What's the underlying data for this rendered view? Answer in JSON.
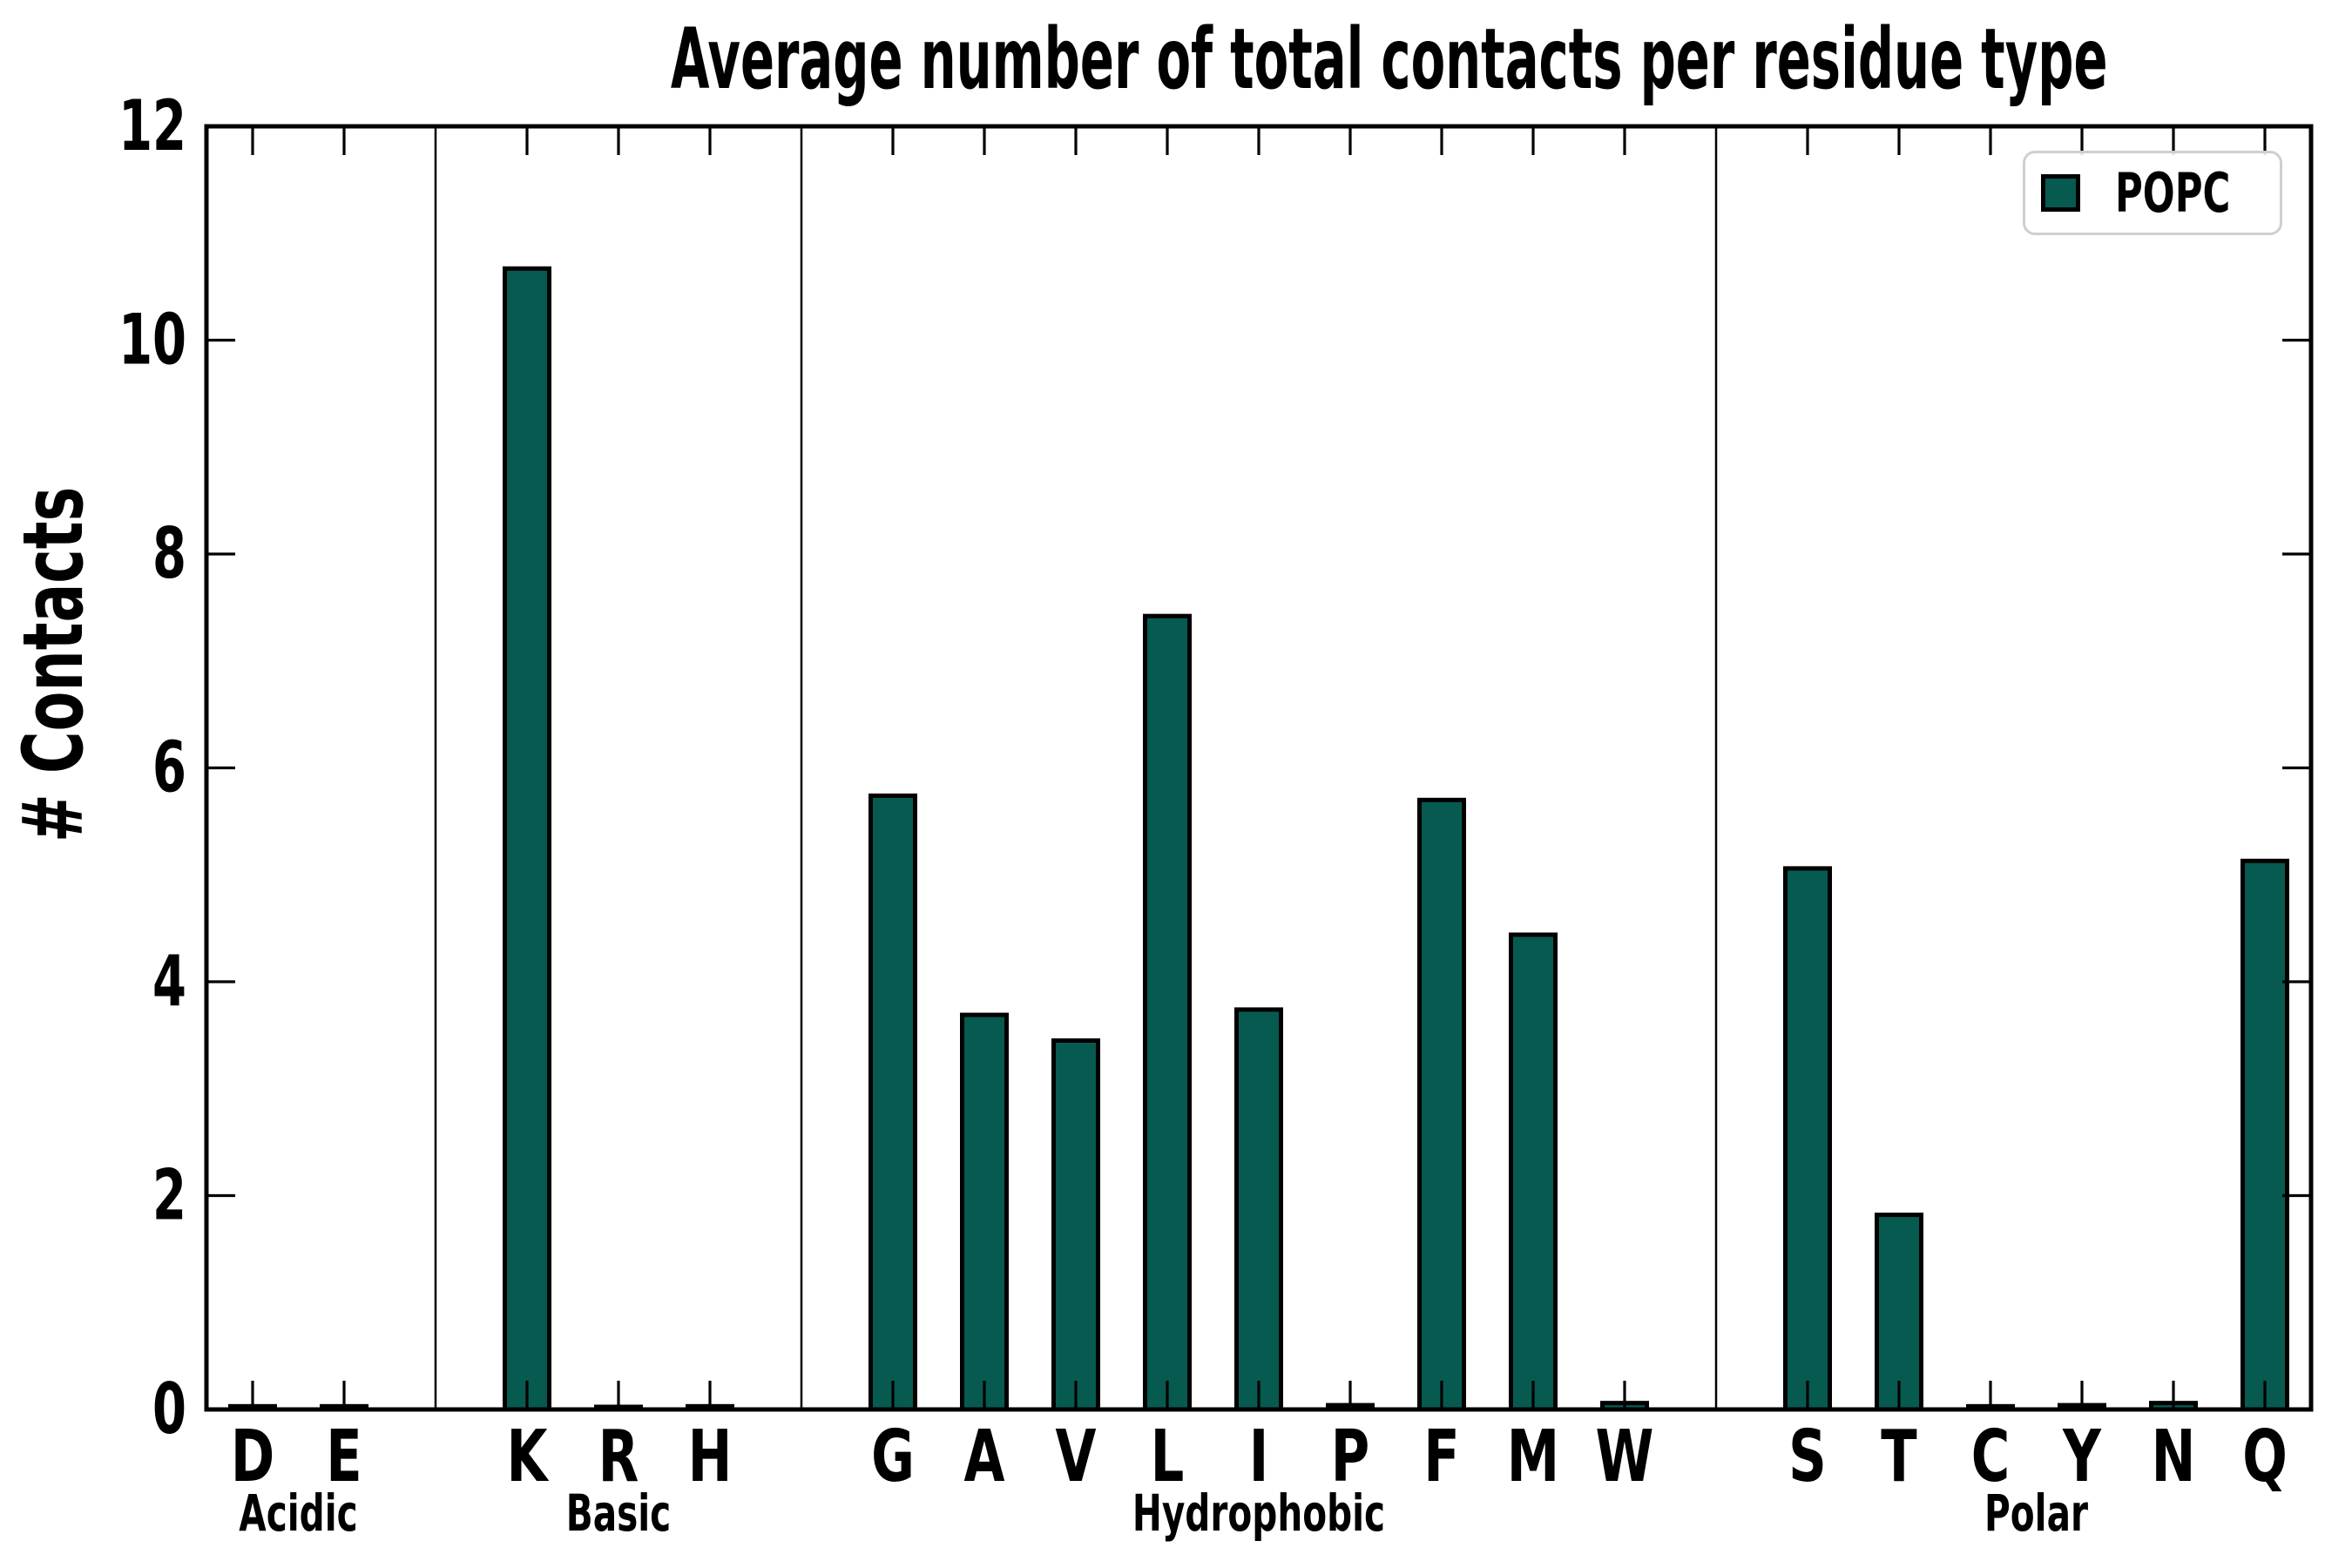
{
  "chart": {
    "title": "Average number of total contacts per residue type",
    "ylabel": "# Contacts",
    "legend": {
      "label": "POPC"
    },
    "colors": {
      "bar_fill": "#075a50",
      "bar_edge": "#000000",
      "axis": "#000000",
      "legend_border": "#cfcfcf",
      "background": "#ffffff"
    }
  },
  "chart_data": {
    "type": "bar",
    "title": "Average number of total contacts per residue type",
    "xlabel": "",
    "ylabel": "# Contacts",
    "ylim": [
      0,
      12
    ],
    "yticks": [
      0,
      2,
      4,
      6,
      8,
      10,
      12
    ],
    "grid": false,
    "legend": {
      "entries": [
        "POPC"
      ],
      "position": "upper right"
    },
    "series": [
      {
        "name": "POPC",
        "color": "#075a50"
      }
    ],
    "groups": [
      {
        "label": "Acidic",
        "categories": [
          "D",
          "E"
        ],
        "values": [
          0.03,
          0.03
        ]
      },
      {
        "label": "Basic",
        "categories": [
          "K",
          "R",
          "H"
        ],
        "values": [
          10.67,
          0.02,
          0.03
        ]
      },
      {
        "label": "Hydrophobic",
        "categories": [
          "G",
          "A",
          "V",
          "L",
          "I",
          "P",
          "F",
          "M",
          "W"
        ],
        "values": [
          5.74,
          3.69,
          3.45,
          7.42,
          3.74,
          0.04,
          5.7,
          4.44,
          0.06
        ]
      },
      {
        "label": "Polar",
        "categories": [
          "S",
          "T",
          "C",
          "Y",
          "N",
          "Q"
        ],
        "values": [
          5.06,
          1.82,
          0.03,
          0.04,
          0.06,
          5.13
        ]
      }
    ]
  }
}
